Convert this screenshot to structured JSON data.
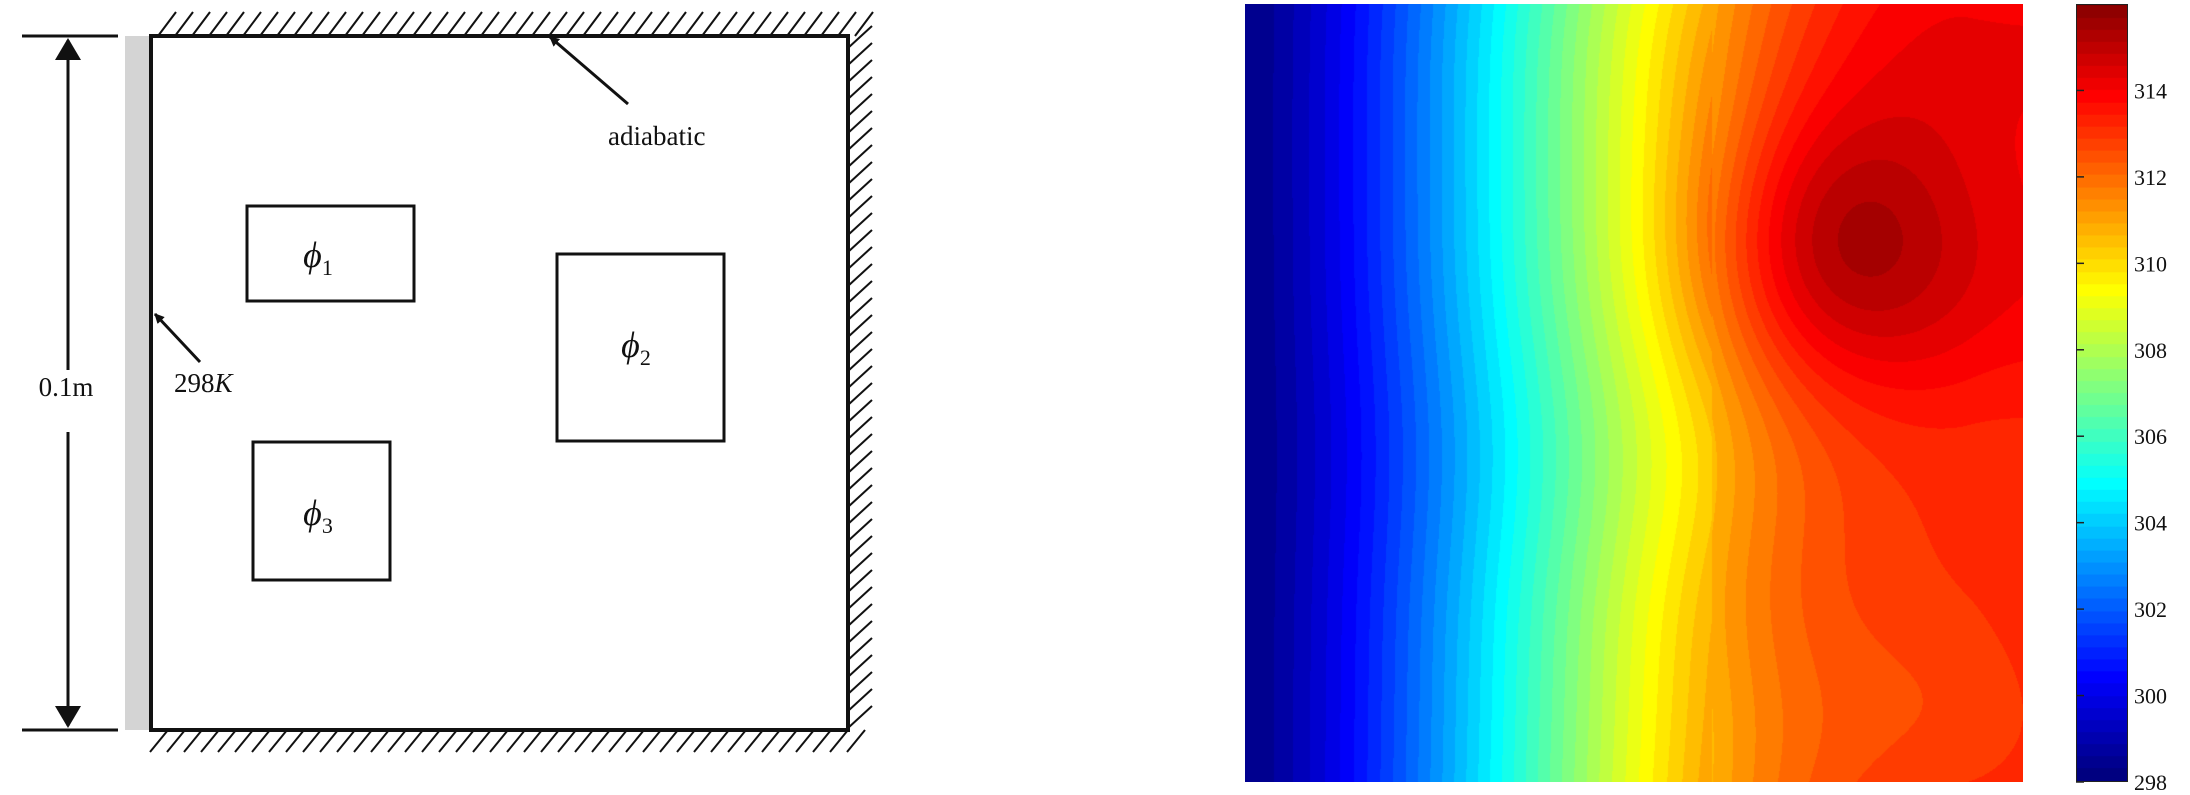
{
  "diagram": {
    "dimension_label": "0.1m",
    "boundary_temp": {
      "value": "298",
      "unit": "K"
    },
    "adiabatic_label": "adiabatic",
    "sources": [
      {
        "symbol": "ϕ",
        "subscript": "1"
      },
      {
        "symbol": "ϕ",
        "subscript": "2"
      },
      {
        "symbol": "ϕ",
        "subscript": "3"
      }
    ]
  },
  "colors": {
    "heat_wall": "#d4d4d4",
    "outline": "#111111"
  },
  "heatmap": {
    "colormap": "jet",
    "range": [
      298,
      316
    ],
    "ticks": [
      "298",
      "300",
      "302",
      "304",
      "306",
      "308",
      "310",
      "312",
      "314"
    ]
  }
}
